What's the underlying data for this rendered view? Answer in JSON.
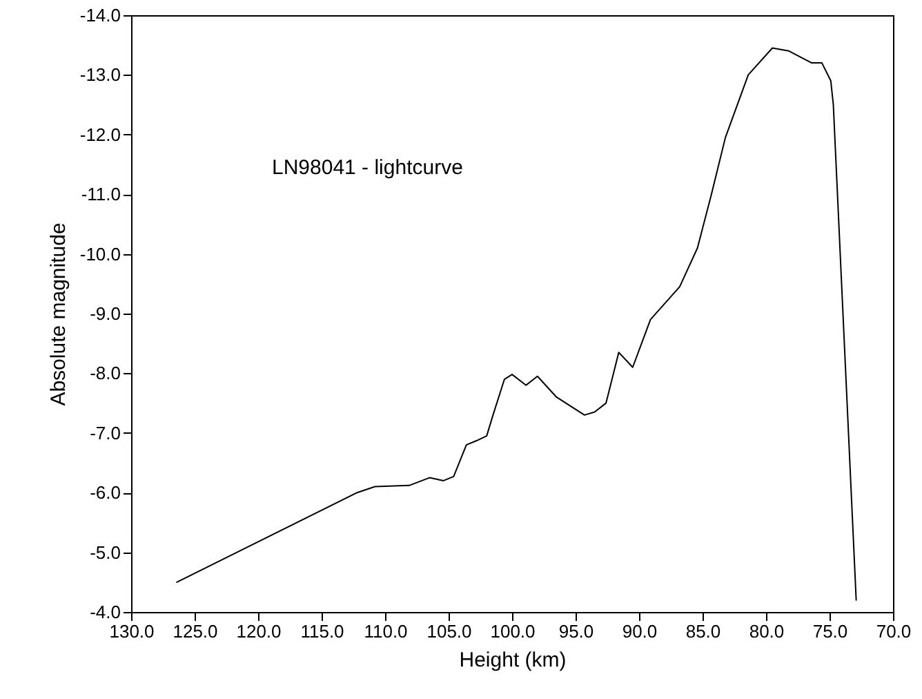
{
  "chart_data": {
    "type": "line",
    "xlabel": "Height (km)",
    "ylabel": "Absolute magnitude",
    "annotations": [
      "LN98041 - lightcurve"
    ],
    "x": [
      126.4,
      112.2,
      110.8,
      108.1,
      106.5,
      105.4,
      104.6,
      103.6,
      102.8,
      102.0,
      101.5,
      100.6,
      100.0,
      98.9,
      98.0,
      96.5,
      94.3,
      93.5,
      92.6,
      91.6,
      90.5,
      89.1,
      86.8,
      85.4,
      84.3,
      83.2,
      81.4,
      79.5,
      78.2,
      76.4,
      75.6,
      74.9,
      74.7,
      72.9
    ],
    "series": [
      {
        "color": "#000000",
        "values": [
          -4.5,
          -6.0,
          -6.1,
          -6.12,
          -6.25,
          -6.2,
          -6.27,
          -6.8,
          -6.87,
          -6.95,
          -7.3,
          -7.9,
          -7.98,
          -7.8,
          -7.95,
          -7.6,
          -7.3,
          -7.35,
          -7.5,
          -8.35,
          -8.1,
          -8.9,
          -9.45,
          -10.1,
          -11.0,
          -11.95,
          -13.0,
          -13.45,
          -13.4,
          -13.2,
          -13.2,
          -12.9,
          -12.5,
          -4.2
        ]
      }
    ],
    "xlim": [
      130,
      70
    ],
    "ylim": [
      -4,
      -14
    ],
    "xticks": [
      {
        "value": 130,
        "label": "130.0"
      },
      {
        "value": 125,
        "label": "125.0"
      },
      {
        "value": 120,
        "label": "120.0"
      },
      {
        "value": 115,
        "label": "115.0"
      },
      {
        "value": 110,
        "label": "110.0"
      },
      {
        "value": 105,
        "label": "105.0"
      },
      {
        "value": 100,
        "label": "100.0"
      },
      {
        "value": 95,
        "label": "95.0"
      },
      {
        "value": 90,
        "label": "90.0"
      },
      {
        "value": 85,
        "label": "85.0"
      },
      {
        "value": 80,
        "label": "80.0"
      },
      {
        "value": 75,
        "label": "75.0"
      },
      {
        "value": 70,
        "label": "70.0"
      }
    ],
    "yticks": [
      {
        "value": -14,
        "label": "-14.0"
      },
      {
        "value": -13,
        "label": "-13.0"
      },
      {
        "value": -12,
        "label": "-12.0"
      },
      {
        "value": -11,
        "label": "-11.0"
      },
      {
        "value": -10,
        "label": "-10.0"
      },
      {
        "value": -9,
        "label": "-9.0"
      },
      {
        "value": -8,
        "label": "-8.0"
      },
      {
        "value": -7,
        "label": "-7.0"
      },
      {
        "value": -6,
        "label": "-6.0"
      },
      {
        "value": -5,
        "label": "-5.0"
      },
      {
        "value": -4,
        "label": "-4.0"
      }
    ],
    "grid": false,
    "marker": "none",
    "line_style": "solid"
  }
}
